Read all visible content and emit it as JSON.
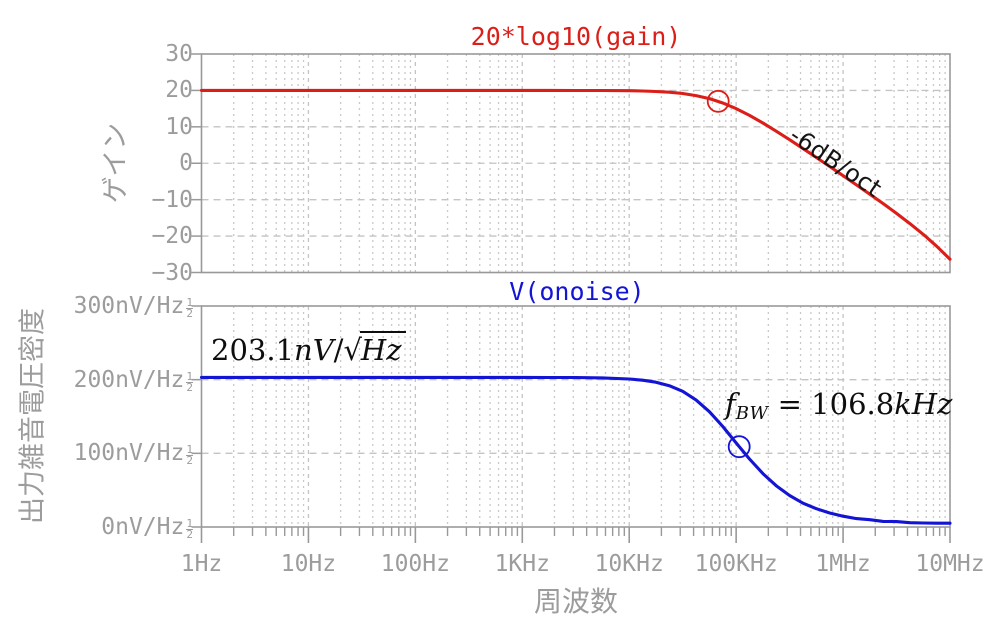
{
  "chart_data": [
    {
      "type": "line",
      "title": "20*log10(gain)",
      "ylabel": "ゲイン",
      "x_scale": "log",
      "xlim_log10": [
        0,
        7
      ],
      "ylim": [
        -30,
        30
      ],
      "y_ticks": [
        30,
        20,
        10,
        0,
        -10,
        -20,
        -30
      ],
      "y_tick_labels": [
        "30",
        "20",
        "10",
        "0",
        "−10",
        "−20",
        "−30"
      ],
      "grid": true,
      "series": [
        {
          "name": "20*log10(gain)",
          "color": "#dc1e19",
          "points_log10f_db": [
            [
              0,
              20
            ],
            [
              0.5,
              20
            ],
            [
              1,
              20
            ],
            [
              1.5,
              20
            ],
            [
              2,
              20
            ],
            [
              2.5,
              20
            ],
            [
              3,
              20
            ],
            [
              3.25,
              20
            ],
            [
              3.5,
              19.99
            ],
            [
              3.75,
              19.97
            ],
            [
              4,
              19.91
            ],
            [
              4.125,
              19.84
            ],
            [
              4.25,
              19.71
            ],
            [
              4.375,
              19.5
            ],
            [
              4.5,
              19.15
            ],
            [
              4.625,
              18.59
            ],
            [
              4.75,
              17.74
            ],
            [
              4.875,
              16.54
            ],
            [
              5,
              15
            ],
            [
              5.125,
              13.15
            ],
            [
              5.25,
              11.06
            ],
            [
              5.375,
              8.81
            ],
            [
              5.5,
              6.46
            ],
            [
              5.625,
              4.03
            ],
            [
              5.75,
              1.6
            ],
            [
              5.875,
              -0.88
            ],
            [
              6,
              -3.41
            ],
            [
              6.125,
              -5.94
            ],
            [
              6.25,
              -8.49
            ],
            [
              6.375,
              -11.09
            ],
            [
              6.5,
              -13.77
            ],
            [
              6.625,
              -16.56
            ],
            [
              6.75,
              -19.54
            ],
            [
              6.875,
              -22.79
            ],
            [
              7,
              -26.36
            ]
          ]
        }
      ],
      "marker": {
        "log10_f": 4.8325,
        "value_db": 17.0
      },
      "annotation": {
        "text": "-6dB/oct",
        "rotation_deg": 34
      }
    },
    {
      "type": "line",
      "title": "V(onoise)",
      "ylabel": "出力雑音電圧密度",
      "x_scale": "log",
      "xlim_log10": [
        0,
        7
      ],
      "ylim_nv_per_rtHz": [
        0,
        300
      ],
      "y_ticks": [
        300,
        200,
        100,
        0
      ],
      "y_tick_label_bases": [
        "300nV/Hz",
        "200nV/Hz",
        "100nV/Hz",
        "0nV/Hz"
      ],
      "y_tick_sup_fraction": {
        "num": "1",
        "den": "2"
      },
      "grid": true,
      "series": [
        {
          "name": "V(onoise)",
          "color": "#1414d4",
          "points_log10f_nv": [
            [
              0,
              203.1
            ],
            [
              0.5,
              203.1
            ],
            [
              1,
              203.1
            ],
            [
              1.5,
              203.1
            ],
            [
              2,
              203.1
            ],
            [
              2.5,
              203.1
            ],
            [
              3,
              203.1
            ],
            [
              3.25,
              203
            ],
            [
              3.5,
              202.9
            ],
            [
              3.75,
              202.4
            ],
            [
              4,
              200.9
            ],
            [
              4.125,
              199.3
            ],
            [
              4.25,
              196.5
            ],
            [
              4.375,
              191.8
            ],
            [
              4.5,
              184.2
            ],
            [
              4.625,
              172.6
            ],
            [
              4.75,
              156.5
            ],
            [
              4.875,
              136.4
            ],
            [
              5,
              114.2
            ],
            [
              5.125,
              92.3
            ],
            [
              5.25,
              72.5
            ],
            [
              5.375,
              56
            ],
            [
              5.5,
              42.7
            ],
            [
              5.625,
              32.3
            ],
            [
              5.75,
              24.9
            ],
            [
              5.875,
              19
            ],
            [
              6,
              14.7
            ],
            [
              6.125,
              11.4
            ],
            [
              6.25,
              9.9
            ],
            [
              6.375,
              7.6
            ],
            [
              6.5,
              7.3
            ],
            [
              6.625,
              5.8
            ],
            [
              6.75,
              5.4
            ],
            [
              6.875,
              5.2
            ],
            [
              7,
              5.1
            ]
          ]
        }
      ],
      "marker": {
        "log10_f": 5.0286,
        "value_nv": 109
      },
      "annotations": {
        "flat_level": {
          "value": "203.1",
          "unit_italic": "nV",
          "slash": "/",
          "sqrt_of": "Hz"
        },
        "bandwidth": {
          "symbol": "f",
          "subscript": "BW",
          "equals": " = ",
          "value": "106.8",
          "unit_italic": "kHz"
        }
      }
    }
  ],
  "xaxis": {
    "label": "周波数",
    "tick_labels": [
      "1Hz",
      "10Hz",
      "100Hz",
      "1KHz",
      "10KHz",
      "100KHz",
      "1MHz",
      "10MHz"
    ]
  },
  "colors": {
    "background": "#ffffff",
    "frame": "#999999",
    "grid_major": "#c4c4c4",
    "grid_minor": "#c9c9c9",
    "tick_text": "#9c9c9c",
    "gain_curve": "#dc1e19",
    "noise_curve": "#1414d4",
    "annotation_text": "#111111"
  }
}
